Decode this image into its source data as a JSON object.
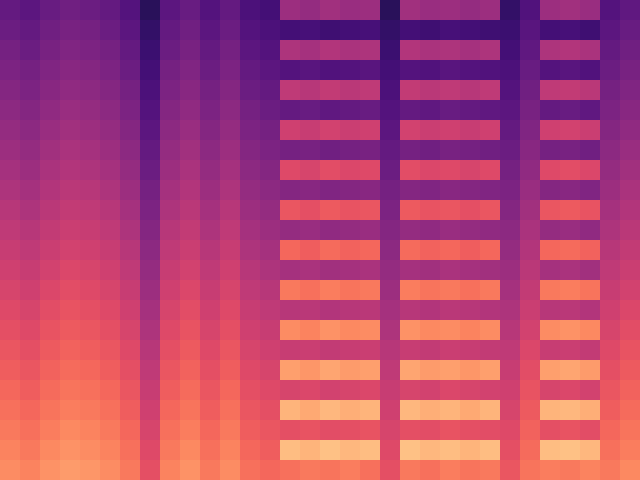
{
  "chart_data": {
    "type": "heatmap",
    "color": "magma",
    "tick_labels": false,
    "zlim": [
      0,
      100
    ],
    "cells": [
      [
        30,
        28,
        31,
        33,
        32,
        30,
        26,
        16,
        28,
        31,
        26,
        30,
        24,
        22,
        44,
        42,
        45,
        43,
        44,
        16,
        45,
        43,
        44,
        42,
        44,
        18,
        25,
        44,
        45,
        43,
        26,
        29
      ],
      [
        32,
        30,
        33,
        35,
        34,
        32,
        28,
        18,
        30,
        33,
        28,
        32,
        26,
        24,
        22,
        23,
        21,
        22,
        23,
        18,
        22,
        21,
        23,
        22,
        21,
        20,
        27,
        22,
        23,
        21,
        28,
        31
      ],
      [
        34,
        32,
        35,
        37,
        36,
        34,
        30,
        20,
        32,
        35,
        30,
        34,
        28,
        26,
        48,
        46,
        49,
        47,
        48,
        20,
        49,
        47,
        48,
        46,
        48,
        22,
        29,
        48,
        49,
        47,
        30,
        33
      ],
      [
        36,
        34,
        37,
        39,
        38,
        36,
        32,
        22,
        34,
        37,
        32,
        36,
        30,
        28,
        26,
        27,
        25,
        26,
        27,
        22,
        26,
        25,
        27,
        26,
        25,
        24,
        31,
        26,
        27,
        25,
        32,
        35
      ],
      [
        38,
        36,
        39,
        41,
        40,
        38,
        34,
        24,
        36,
        39,
        34,
        38,
        32,
        30,
        52,
        50,
        53,
        51,
        52,
        24,
        53,
        51,
        52,
        50,
        52,
        26,
        33,
        52,
        53,
        51,
        34,
        37
      ],
      [
        40,
        38,
        41,
        43,
        42,
        40,
        36,
        26,
        38,
        41,
        36,
        40,
        34,
        32,
        30,
        31,
        29,
        30,
        31,
        26,
        30,
        29,
        31,
        30,
        29,
        28,
        35,
        30,
        31,
        29,
        36,
        39
      ],
      [
        42,
        40,
        43,
        45,
        44,
        42,
        38,
        28,
        40,
        43,
        38,
        42,
        36,
        34,
        56,
        54,
        57,
        55,
        56,
        28,
        57,
        55,
        56,
        54,
        56,
        30,
        37,
        56,
        57,
        55,
        38,
        41
      ],
      [
        44,
        42,
        45,
        47,
        46,
        44,
        40,
        30,
        42,
        45,
        40,
        44,
        38,
        36,
        34,
        35,
        33,
        34,
        35,
        30,
        34,
        33,
        35,
        34,
        33,
        32,
        39,
        34,
        35,
        33,
        40,
        43
      ],
      [
        46,
        44,
        47,
        49,
        48,
        46,
        42,
        32,
        44,
        47,
        42,
        46,
        40,
        38,
        60,
        58,
        61,
        59,
        60,
        32,
        61,
        59,
        60,
        58,
        60,
        34,
        41,
        60,
        61,
        59,
        42,
        45
      ],
      [
        48,
        46,
        49,
        51,
        50,
        48,
        44,
        34,
        46,
        49,
        44,
        48,
        42,
        40,
        38,
        39,
        37,
        38,
        39,
        34,
        38,
        37,
        39,
        38,
        37,
        36,
        43,
        38,
        39,
        37,
        44,
        47
      ],
      [
        50,
        48,
        51,
        53,
        52,
        50,
        46,
        36,
        48,
        51,
        46,
        50,
        44,
        42,
        64,
        62,
        65,
        63,
        64,
        36,
        65,
        63,
        64,
        62,
        64,
        38,
        45,
        64,
        65,
        63,
        46,
        49
      ],
      [
        52,
        50,
        53,
        55,
        54,
        52,
        48,
        38,
        50,
        53,
        48,
        52,
        46,
        44,
        42,
        43,
        41,
        42,
        43,
        38,
        42,
        41,
        43,
        42,
        41,
        40,
        47,
        42,
        43,
        41,
        48,
        51
      ],
      [
        54,
        52,
        55,
        57,
        56,
        54,
        50,
        40,
        52,
        55,
        50,
        54,
        48,
        46,
        68,
        66,
        69,
        67,
        68,
        40,
        69,
        67,
        68,
        66,
        68,
        42,
        49,
        68,
        69,
        67,
        50,
        53
      ],
      [
        56,
        54,
        57,
        59,
        58,
        56,
        52,
        42,
        54,
        57,
        52,
        56,
        50,
        48,
        46,
        47,
        45,
        46,
        47,
        42,
        46,
        45,
        47,
        46,
        45,
        44,
        51,
        46,
        47,
        45,
        52,
        55
      ],
      [
        58,
        56,
        59,
        61,
        60,
        58,
        54,
        44,
        56,
        59,
        54,
        58,
        52,
        50,
        72,
        70,
        73,
        71,
        72,
        44,
        73,
        71,
        72,
        70,
        72,
        46,
        53,
        72,
        73,
        71,
        54,
        57
      ],
      [
        60,
        58,
        61,
        63,
        62,
        60,
        56,
        46,
        58,
        61,
        56,
        60,
        54,
        52,
        50,
        51,
        49,
        50,
        51,
        46,
        50,
        49,
        51,
        50,
        49,
        48,
        55,
        50,
        51,
        49,
        56,
        59
      ],
      [
        62,
        60,
        63,
        65,
        64,
        62,
        58,
        48,
        60,
        63,
        58,
        62,
        56,
        54,
        76,
        74,
        77,
        75,
        76,
        48,
        77,
        75,
        76,
        74,
        76,
        50,
        57,
        76,
        77,
        75,
        58,
        61
      ],
      [
        64,
        62,
        65,
        67,
        66,
        64,
        60,
        50,
        62,
        65,
        60,
        64,
        58,
        56,
        54,
        55,
        53,
        54,
        55,
        50,
        54,
        53,
        55,
        54,
        53,
        52,
        59,
        54,
        55,
        53,
        60,
        63
      ],
      [
        66,
        64,
        67,
        69,
        68,
        66,
        62,
        52,
        64,
        67,
        62,
        66,
        60,
        58,
        80,
        78,
        81,
        79,
        80,
        52,
        81,
        79,
        80,
        78,
        80,
        54,
        61,
        80,
        81,
        79,
        62,
        65
      ],
      [
        68,
        66,
        69,
        71,
        70,
        68,
        64,
        54,
        66,
        69,
        64,
        68,
        62,
        60,
        58,
        59,
        57,
        58,
        59,
        54,
        58,
        57,
        59,
        58,
        57,
        56,
        63,
        58,
        59,
        57,
        64,
        67
      ],
      [
        70,
        68,
        71,
        73,
        72,
        70,
        66,
        56,
        68,
        71,
        66,
        70,
        64,
        62,
        84,
        82,
        85,
        83,
        84,
        56,
        85,
        83,
        84,
        82,
        84,
        58,
        65,
        84,
        85,
        83,
        66,
        69
      ],
      [
        72,
        70,
        73,
        75,
        74,
        72,
        68,
        58,
        70,
        73,
        68,
        72,
        66,
        64,
        62,
        63,
        61,
        62,
        63,
        58,
        62,
        61,
        63,
        62,
        61,
        60,
        67,
        62,
        63,
        61,
        68,
        71
      ],
      [
        74,
        72,
        75,
        77,
        76,
        74,
        70,
        60,
        72,
        75,
        70,
        74,
        68,
        66,
        86,
        84,
        87,
        85,
        86,
        60,
        87,
        85,
        86,
        84,
        86,
        62,
        69,
        86,
        87,
        85,
        70,
        73
      ],
      [
        76,
        74,
        77,
        79,
        78,
        76,
        72,
        62,
        74,
        77,
        72,
        76,
        70,
        68,
        70,
        72,
        71,
        73,
        70,
        62,
        72,
        70,
        73,
        71,
        72,
        64,
        71,
        73,
        72,
        74,
        72,
        75
      ]
    ]
  }
}
